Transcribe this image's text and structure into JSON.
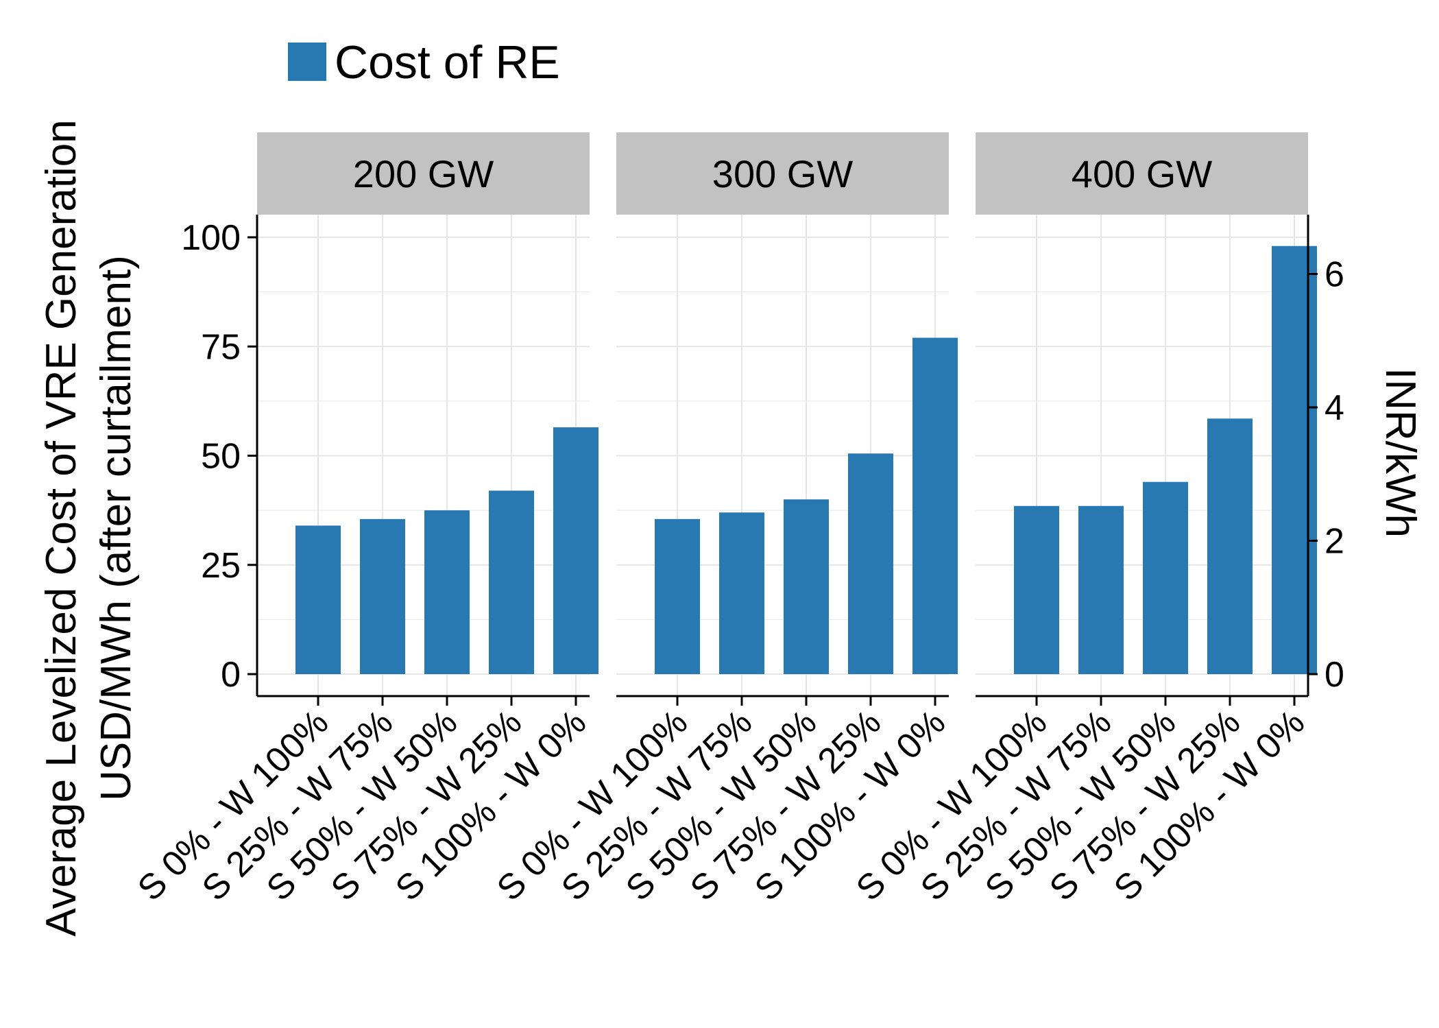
{
  "chart_data": {
    "type": "bar",
    "legend": {
      "position": "top-left",
      "entries": [
        {
          "label": "Cost of RE",
          "color": "#2878B1"
        }
      ]
    },
    "ylabel_lines": [
      "Average Levelized Cost of VRE Generation",
      "USD/MWh (after curtailment)"
    ],
    "ylabel_right": "INR/kWh",
    "ylim": [
      0,
      104
    ],
    "y_ticks": [
      "0",
      "25",
      "50",
      "75",
      "100"
    ],
    "y_tick_values": [
      0,
      25,
      50,
      75,
      100
    ],
    "y2_ticks": [
      "0",
      "2",
      "4",
      "6"
    ],
    "y2_tick_values": [
      0,
      2,
      4,
      6
    ],
    "y2_per_y": 0.0655,
    "grid": true,
    "categories": [
      "S 0% - W 100%",
      "S 25% - W 75%",
      "S 50% - W 50%",
      "S 75% - W 25%",
      "S 100% - W 0%"
    ],
    "facets": [
      {
        "label": "200 GW",
        "values": [
          34,
          35.5,
          37.5,
          42,
          56.5
        ]
      },
      {
        "label": "300 GW",
        "values": [
          35.5,
          37,
          40,
          50.5,
          77
        ]
      },
      {
        "label": "400 GW",
        "values": [
          38.5,
          38.5,
          44,
          58.5,
          98
        ]
      }
    ],
    "colors": {
      "bar": "#2878B1",
      "strip": "#C2C2C2",
      "grid": "#E6E6E6"
    }
  }
}
